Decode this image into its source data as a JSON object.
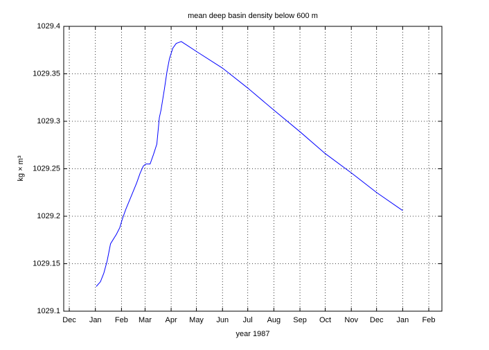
{
  "chart_data": {
    "type": "line",
    "title": "mean deep basin density below 600 m",
    "x_label": "year 1987",
    "y_label": "kg × m³",
    "x": [
      1,
      6,
      10,
      14,
      18,
      25,
      29,
      32,
      36,
      43,
      49,
      53,
      57,
      60,
      65,
      69,
      73,
      76,
      78,
      82,
      85,
      88,
      92,
      96,
      102,
      109,
      121,
      151,
      181,
      213,
      243,
      273,
      305,
      334,
      365
    ],
    "values": [
      1029.126,
      1029.131,
      1029.14,
      1029.153,
      1029.171,
      1029.181,
      1029.188,
      1029.197,
      1029.207,
      1029.222,
      1029.235,
      1029.245,
      1029.253,
      1029.255,
      1029.255,
      1029.265,
      1029.276,
      1029.304,
      1029.312,
      1029.334,
      1029.352,
      1029.366,
      1029.377,
      1029.382,
      1029.384,
      1029.38,
      1029.373,
      1029.356,
      1029.335,
      1029.311,
      1029.289,
      1029.266,
      1029.245,
      1029.225,
      1029.206
    ],
    "color": "#0000ff",
    "xlim": [
      -37.6,
      411.6
    ],
    "xticks": [
      {
        "value": -31,
        "label": "Dec"
      },
      {
        "value": 0,
        "label": "Jan"
      },
      {
        "value": 31,
        "label": "Feb"
      },
      {
        "value": 59,
        "label": "Mar"
      },
      {
        "value": 90,
        "label": "Apr"
      },
      {
        "value": 120,
        "label": "May"
      },
      {
        "value": 151,
        "label": "Jun"
      },
      {
        "value": 181,
        "label": "Jul"
      },
      {
        "value": 212,
        "label": "Aug"
      },
      {
        "value": 243,
        "label": "Sep"
      },
      {
        "value": 273,
        "label": "Oct"
      },
      {
        "value": 304,
        "label": "Nov"
      },
      {
        "value": 334,
        "label": "Dec"
      },
      {
        "value": 365,
        "label": "Jan"
      },
      {
        "value": 396,
        "label": "Feb"
      }
    ],
    "ylim": [
      1029.1,
      1029.4
    ],
    "yticks": [
      1029.1,
      1029.15,
      1029.2,
      1029.25,
      1029.3,
      1029.35,
      1029.4
    ],
    "grid": true
  }
}
